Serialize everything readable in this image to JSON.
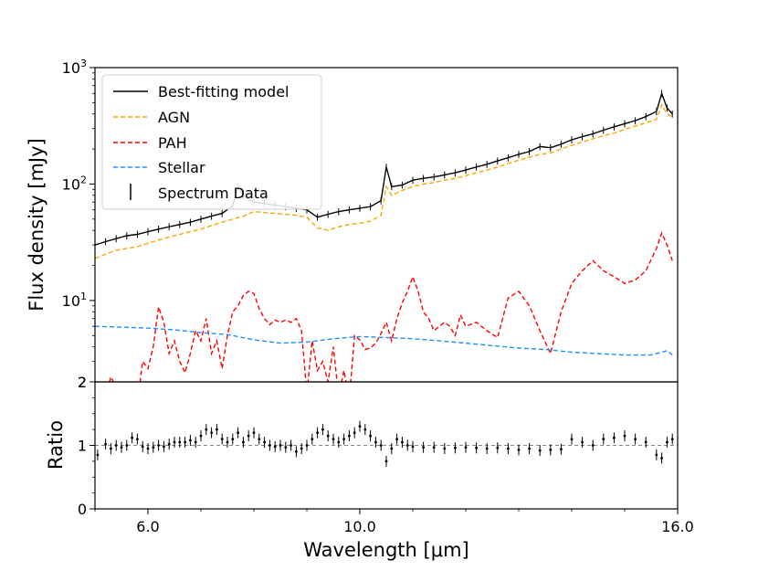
{
  "chart_data": [
    {
      "type": "line",
      "panel": "top",
      "yscale": "log",
      "ylabel": "Flux density [mJy]",
      "xlim": [
        5.0,
        16.0
      ],
      "ylim": [
        2,
        1000
      ],
      "yticks": [
        {
          "value": 2,
          "label": "2"
        },
        {
          "value": 10,
          "label": "10^1"
        },
        {
          "value": 100,
          "label": "10^2"
        },
        {
          "value": 1000,
          "label": "10^3"
        }
      ],
      "legend_position": "top-left",
      "legend": [
        "Best-fitting model",
        "AGN",
        "PAH",
        "Stellar",
        "Spectrum Data"
      ],
      "series": [
        {
          "name": "Best-fitting model",
          "color": "#000000",
          "style": "solid",
          "x": [
            5.0,
            5.2,
            5.4,
            5.6,
            5.8,
            6.0,
            6.2,
            6.4,
            6.6,
            6.8,
            7.0,
            7.2,
            7.4,
            7.6,
            7.7,
            7.8,
            8.0,
            8.2,
            8.4,
            8.6,
            8.8,
            9.0,
            9.2,
            9.4,
            9.6,
            9.8,
            10.0,
            10.2,
            10.4,
            10.5,
            10.6,
            10.8,
            11.0,
            11.2,
            11.4,
            11.6,
            11.8,
            12.0,
            12.2,
            12.4,
            12.6,
            12.8,
            13.0,
            13.2,
            13.4,
            13.6,
            13.8,
            14.0,
            14.2,
            14.4,
            14.6,
            14.8,
            15.0,
            15.2,
            15.4,
            15.6,
            15.7,
            15.8,
            15.9
          ],
          "y": [
            30,
            32,
            34,
            36,
            37,
            39,
            41,
            43,
            45,
            47,
            50,
            53,
            56,
            65,
            95,
            78,
            70,
            68,
            66,
            64,
            62,
            60,
            52,
            55,
            58,
            60,
            62,
            64,
            72,
            140,
            95,
            98,
            108,
            112,
            115,
            120,
            125,
            132,
            140,
            148,
            158,
            168,
            180,
            190,
            210,
            205,
            220,
            240,
            255,
            270,
            290,
            310,
            330,
            350,
            380,
            420,
            600,
            450,
            400
          ]
        },
        {
          "name": "AGN",
          "color": "#ffa500",
          "style": "dashed",
          "x": [
            5.0,
            5.2,
            5.4,
            5.6,
            5.8,
            6.0,
            6.2,
            6.4,
            6.6,
            6.8,
            7.0,
            7.2,
            7.4,
            7.6,
            7.8,
            8.0,
            8.2,
            8.4,
            8.6,
            8.8,
            9.0,
            9.2,
            9.4,
            9.6,
            9.8,
            10.0,
            10.2,
            10.4,
            10.5,
            10.6,
            10.8,
            11.0,
            11.2,
            11.4,
            11.6,
            11.8,
            12.0,
            12.2,
            12.4,
            12.6,
            12.8,
            13.0,
            13.2,
            13.4,
            13.6,
            13.8,
            14.0,
            14.2,
            14.4,
            14.6,
            14.8,
            15.0,
            15.2,
            15.4,
            15.6,
            15.7,
            15.8,
            15.9
          ],
          "y": [
            23,
            25,
            27,
            28,
            29,
            31,
            33,
            35,
            37,
            39,
            41,
            44,
            47,
            50,
            53,
            58,
            57,
            56,
            55,
            54,
            52,
            42,
            40,
            43,
            45,
            46,
            48,
            54,
            95,
            80,
            88,
            95,
            100,
            103,
            108,
            112,
            118,
            125,
            132,
            140,
            150,
            160,
            170,
            180,
            185,
            200,
            215,
            230,
            245,
            260,
            275,
            295,
            315,
            335,
            360,
            480,
            400,
            380
          ]
        },
        {
          "name": "PAH",
          "color": "#ff0000",
          "style": "dashed",
          "x": [
            5.0,
            5.1,
            5.2,
            5.3,
            5.4,
            5.5,
            5.6,
            5.7,
            5.8,
            5.9,
            6.0,
            6.1,
            6.2,
            6.3,
            6.4,
            6.5,
            6.6,
            6.7,
            6.8,
            6.9,
            7.0,
            7.1,
            7.2,
            7.3,
            7.4,
            7.5,
            7.6,
            7.7,
            7.8,
            7.9,
            8.0,
            8.1,
            8.2,
            8.3,
            8.4,
            8.5,
            8.6,
            8.7,
            8.8,
            8.9,
            9.0,
            9.1,
            9.2,
            9.3,
            9.4,
            9.5,
            9.6,
            9.7,
            9.8,
            9.9,
            10.0,
            10.1,
            10.2,
            10.3,
            10.4,
            10.5,
            10.6,
            10.7,
            10.8,
            10.9,
            11.0,
            11.1,
            11.2,
            11.3,
            11.4,
            11.5,
            11.6,
            11.7,
            11.8,
            11.9,
            12.0,
            12.2,
            12.4,
            12.6,
            12.8,
            13.0,
            13.2,
            13.4,
            13.6,
            13.8,
            14.0,
            14.2,
            14.4,
            14.6,
            14.8,
            15.0,
            15.2,
            15.4,
            15.6,
            15.7,
            15.8,
            15.9
          ],
          "y": [
            1.9,
            1.2,
            1.5,
            2.2,
            1.8,
            1.4,
            2.0,
            1.5,
            1.3,
            3.0,
            2.6,
            4.0,
            8.8,
            6.5,
            3.5,
            4.5,
            3.0,
            2.4,
            3.5,
            5.5,
            4.5,
            7.0,
            3.5,
            4.5,
            2.6,
            5.0,
            8.0,
            9.0,
            11.0,
            12.0,
            11.5,
            8.5,
            7.0,
            6.2,
            6.8,
            6.5,
            6.8,
            6.5,
            7.0,
            5.5,
            1.6,
            4.5,
            2.5,
            3.0,
            2.0,
            4.0,
            1.5,
            2.5,
            1.4,
            5.0,
            4.6,
            3.8,
            3.9,
            4.3,
            5.2,
            6.5,
            4.5,
            7.0,
            9.5,
            12.0,
            16.0,
            12.0,
            8.0,
            7.0,
            5.5,
            6.0,
            6.5,
            6.0,
            5.0,
            7.5,
            6.0,
            6.5,
            5.5,
            4.8,
            10.5,
            12.0,
            9.0,
            5.5,
            3.5,
            8.0,
            14.0,
            18.0,
            22.0,
            18.0,
            16.0,
            14.0,
            15.0,
            18.0,
            28.0,
            38.0,
            30.0,
            22.0
          ]
        },
        {
          "name": "Stellar",
          "color": "#1e90ff",
          "style": "dashed",
          "x": [
            5.0,
            5.5,
            6.0,
            6.5,
            7.0,
            7.5,
            8.0,
            8.5,
            9.0,
            9.5,
            10.0,
            10.5,
            11.0,
            11.5,
            12.0,
            12.5,
            13.0,
            13.5,
            14.0,
            14.5,
            15.0,
            15.5,
            15.8,
            15.9
          ],
          "y": [
            6.0,
            5.9,
            5.8,
            5.6,
            5.3,
            5.1,
            4.6,
            4.3,
            4.4,
            4.7,
            4.9,
            4.8,
            4.7,
            4.5,
            4.3,
            4.1,
            3.9,
            3.8,
            3.6,
            3.5,
            3.4,
            3.4,
            3.7,
            3.4
          ]
        }
      ]
    },
    {
      "type": "scatter",
      "panel": "bottom",
      "ylabel": "Ratio",
      "xlabel": "Wavelength [μm]",
      "xlim": [
        5.0,
        16.0
      ],
      "ylim": [
        0,
        2
      ],
      "yticks": [
        {
          "value": 0,
          "label": "0"
        },
        {
          "value": 1,
          "label": "1"
        },
        {
          "value": 2,
          "label": "2"
        }
      ],
      "xticks": [
        {
          "value": 6.0,
          "label": "6.0"
        },
        {
          "value": 10.0,
          "label": "10.0"
        },
        {
          "value": 16.0,
          "label": "16.0"
        }
      ],
      "reference_line": 1.0,
      "series": [
        {
          "name": "Ratio",
          "color": "#000000",
          "x": [
            5.05,
            5.2,
            5.3,
            5.4,
            5.5,
            5.6,
            5.7,
            5.8,
            5.9,
            6.0,
            6.1,
            6.2,
            6.3,
            6.4,
            6.5,
            6.6,
            6.7,
            6.8,
            6.9,
            7.0,
            7.1,
            7.2,
            7.3,
            7.4,
            7.5,
            7.6,
            7.7,
            7.8,
            7.9,
            8.0,
            8.1,
            8.2,
            8.3,
            8.4,
            8.5,
            8.6,
            8.7,
            8.8,
            8.9,
            9.0,
            9.1,
            9.2,
            9.3,
            9.4,
            9.5,
            9.6,
            9.7,
            9.8,
            9.9,
            10.0,
            10.1,
            10.2,
            10.3,
            10.4,
            10.5,
            10.6,
            10.7,
            10.8,
            10.9,
            11.0,
            11.2,
            11.4,
            11.6,
            11.8,
            12.0,
            12.2,
            12.4,
            12.6,
            12.8,
            13.0,
            13.2,
            13.4,
            13.6,
            13.8,
            14.0,
            14.2,
            14.4,
            14.6,
            14.8,
            15.0,
            15.2,
            15.4,
            15.6,
            15.7,
            15.8,
            15.9
          ],
          "y": [
            0.85,
            1.02,
            0.95,
            1.0,
            0.97,
            1.0,
            1.12,
            1.1,
            0.98,
            0.95,
            0.97,
            1.0,
            0.98,
            1.02,
            1.05,
            1.05,
            1.05,
            1.08,
            1.05,
            1.15,
            1.25,
            1.2,
            1.25,
            1.1,
            1.05,
            1.1,
            1.2,
            1.05,
            1.15,
            1.2,
            1.1,
            1.05,
            1.0,
            0.98,
            1.0,
            0.97,
            1.0,
            0.9,
            0.95,
            1.0,
            1.1,
            1.2,
            1.25,
            1.15,
            1.1,
            1.05,
            1.1,
            1.15,
            1.2,
            1.3,
            1.25,
            1.15,
            1.05,
            1.0,
            0.75,
            0.95,
            1.1,
            1.05,
            1.0,
            0.98,
            0.97,
            0.97,
            0.95,
            0.96,
            0.97,
            0.96,
            0.95,
            0.96,
            0.95,
            0.93,
            0.95,
            0.92,
            0.93,
            0.94,
            1.1,
            1.05,
            1.0,
            1.1,
            1.12,
            1.15,
            1.1,
            1.05,
            0.85,
            0.8,
            1.05,
            1.1
          ]
        }
      ]
    }
  ]
}
